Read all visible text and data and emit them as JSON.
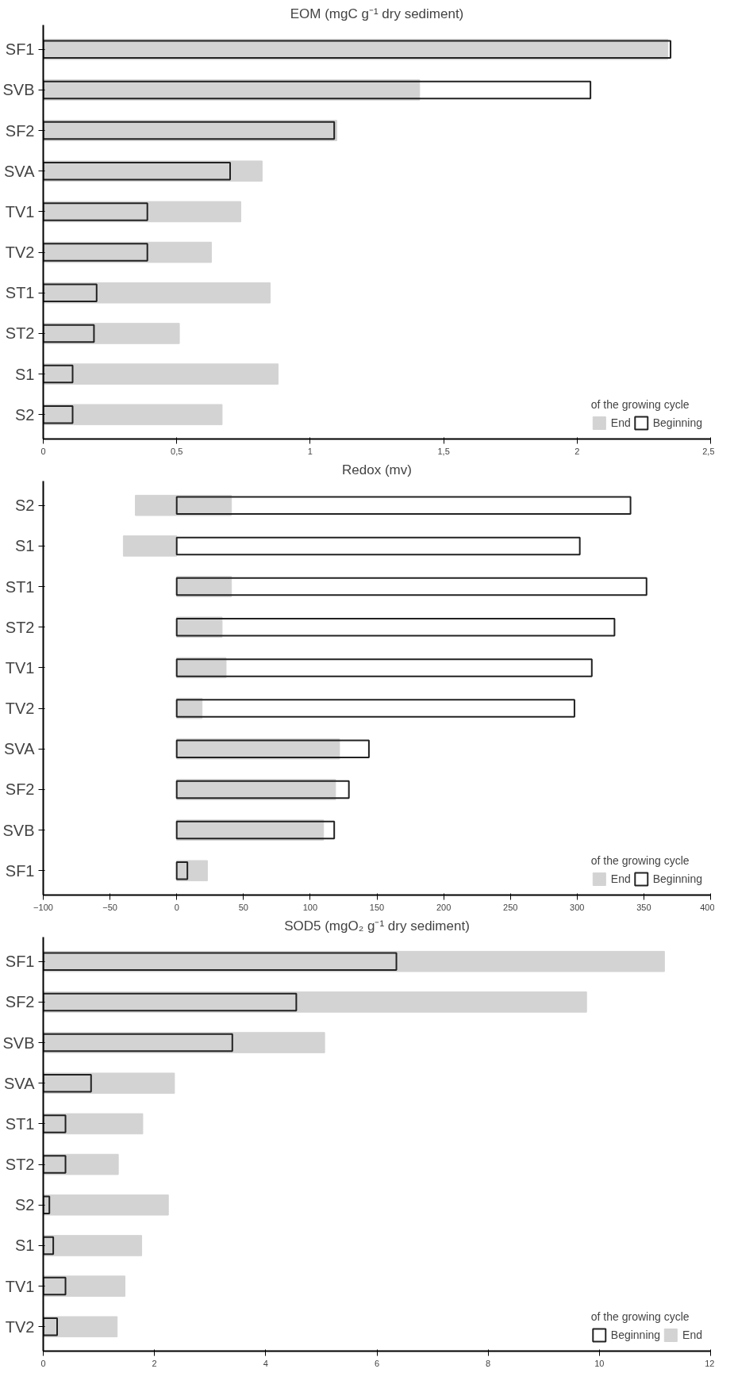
{
  "chart_data": [
    {
      "type": "bar",
      "orientation": "horizontal",
      "title": "EOM (mgC g⁻¹ dry sediment)",
      "categories": [
        "SF1",
        "SVB",
        "SF2",
        "SVA",
        "TV1",
        "TV2",
        "ST1",
        "ST2",
        "S1",
        "S2"
      ],
      "series": [
        {
          "name": "End",
          "color": "#d3d3d3",
          "values": [
            2.34,
            1.41,
            1.1,
            0.82,
            0.74,
            0.63,
            0.85,
            0.51,
            0.88,
            0.67
          ]
        },
        {
          "name": "Beginning",
          "color": "#222222",
          "line_style": "solid",
          "values": [
            2.35,
            2.05,
            1.09,
            0.7,
            0.39,
            0.39,
            0.2,
            0.19,
            0.11,
            0.11
          ]
        }
      ],
      "xlim": [
        0,
        2.5
      ],
      "xticks": [
        0,
        {
          "value": 0.5,
          "label": "0,5"
        },
        1,
        {
          "value": 1.5,
          "label": "1,5"
        },
        2,
        {
          "value": 2.5,
          "label": "2,5"
        }
      ],
      "legend": "bottom right",
      "legend_title": "of the growing cycle",
      "grid": false
    },
    {
      "type": "bar",
      "orientation": "horizontal",
      "title": "Redox (mv)",
      "categories": [
        "S2",
        "S1",
        "ST1",
        "ST2",
        "TV1",
        "TV2",
        "SVA",
        "SF2",
        "SVB",
        "SF1"
      ],
      "series": [
        {
          "name": "End",
          "color": "#d3d3d3",
          "base": [
            -31,
            -40,
            0,
            0,
            0,
            0,
            0,
            0,
            0,
            0
          ],
          "values": [
            72,
            40,
            41,
            34,
            37,
            19,
            122,
            119,
            110,
            23
          ]
        },
        {
          "name": "Beginning",
          "color": "#222222",
          "line_style": "solid",
          "values": [
            340,
            302,
            352,
            328,
            311,
            298,
            144,
            129,
            118,
            8
          ]
        }
      ],
      "xlim": [
        -100,
        400
      ],
      "xticks": [
        -100,
        -50,
        0,
        50,
        100,
        150,
        200,
        250,
        300,
        350,
        400
      ],
      "legend": "bottom right",
      "legend_title": "of the growing cycle",
      "grid": false
    },
    {
      "type": "bar",
      "orientation": "horizontal",
      "title": "SOD5 (mgO₂ g⁻¹ dry sediment)",
      "categories": [
        "SF1",
        "SF2",
        "SVB",
        "SVA",
        "ST1",
        "ST2",
        "S2",
        "S1",
        "TV1",
        "TV2"
      ],
      "series": [
        {
          "name": "Beginning",
          "color": "#222222",
          "line_style": "solid",
          "values": [
            6.35,
            4.55,
            3.4,
            0.86,
            0.4,
            0.4,
            0.11,
            0.18,
            0.4,
            0.25
          ]
        },
        {
          "name": "End",
          "color": "#d3d3d3",
          "values": [
            11.17,
            9.77,
            5.06,
            2.36,
            1.79,
            1.35,
            2.25,
            1.77,
            1.47,
            1.33
          ]
        }
      ],
      "xlim": [
        0,
        12
      ],
      "xticks": [
        0,
        2,
        4,
        6,
        8,
        10,
        12
      ],
      "legend": "bottom right",
      "legend_title": "of the growing cycle",
      "grid": false
    }
  ]
}
